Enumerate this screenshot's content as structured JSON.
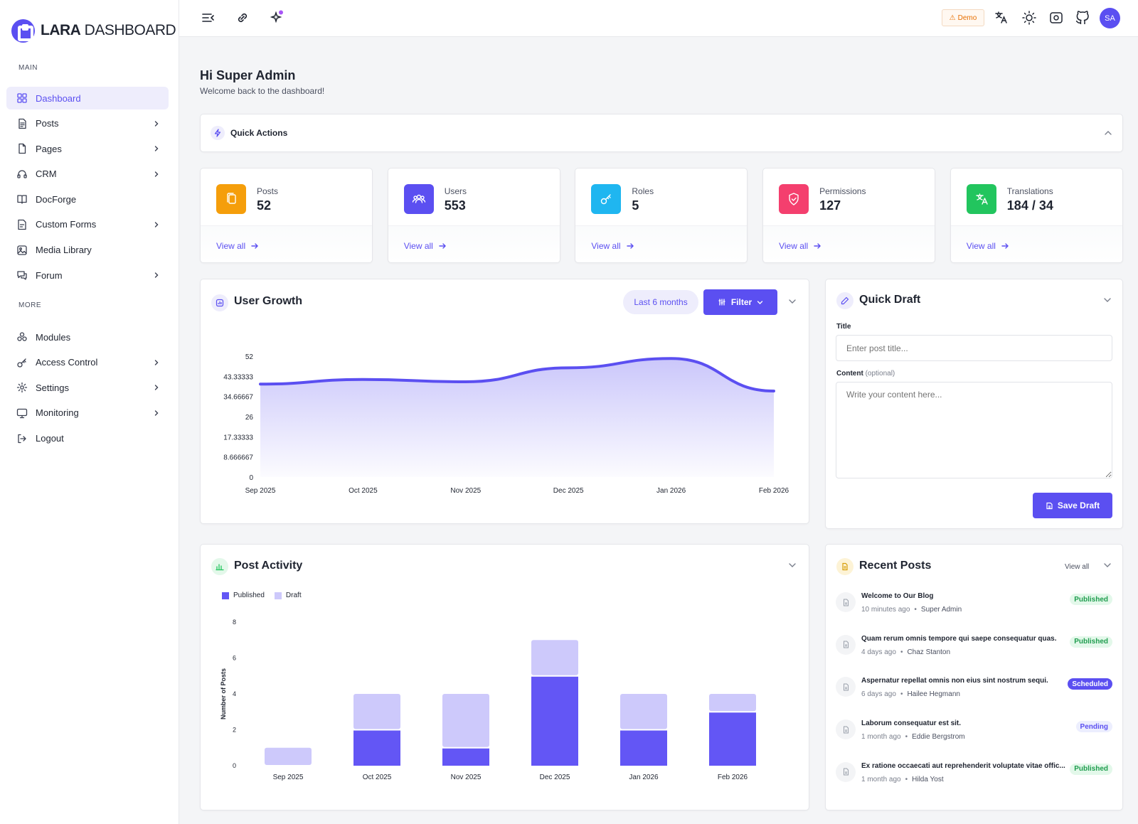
{
  "brand": {
    "bold": "LARA",
    "light": " DASHBOARD",
    "color": "#5b4ff1"
  },
  "sidebar": {
    "main_label": "MAIN",
    "more_label": "MORE",
    "main_items": [
      {
        "label": "Dashboard",
        "icon": "grid-icon",
        "active": true,
        "chevron": false
      },
      {
        "label": "Posts",
        "icon": "document-icon",
        "chevron": true
      },
      {
        "label": "Pages",
        "icon": "file-icon",
        "chevron": true
      },
      {
        "label": "CRM",
        "icon": "headset-icon",
        "chevron": true
      },
      {
        "label": "DocForge",
        "icon": "book-icon",
        "chevron": false
      },
      {
        "label": "Custom Forms",
        "icon": "form-icon",
        "chevron": true
      },
      {
        "label": "Media Library",
        "icon": "image-icon",
        "chevron": false
      },
      {
        "label": "Forum",
        "icon": "chat-icon",
        "chevron": true
      }
    ],
    "more_items": [
      {
        "label": "Modules",
        "icon": "modules-icon",
        "chevron": false
      },
      {
        "label": "Access Control",
        "icon": "key-icon",
        "chevron": true
      },
      {
        "label": "Settings",
        "icon": "gear-icon",
        "chevron": true
      },
      {
        "label": "Monitoring",
        "icon": "monitor-icon",
        "chevron": true
      },
      {
        "label": "Logout",
        "icon": "logout-icon",
        "chevron": false
      }
    ]
  },
  "topbar": {
    "demo_label": "Demo",
    "avatar_initials": "SA"
  },
  "greeting": {
    "title": "Hi Super Admin",
    "subtitle": "Welcome back to the dashboard!"
  },
  "quick_actions": {
    "title": "Quick Actions"
  },
  "stats": [
    {
      "label": "Posts",
      "value": "52",
      "link": "View all",
      "color": "#f59e0b",
      "icon": "copy-icon"
    },
    {
      "label": "Users",
      "value": "553",
      "link": "View all",
      "color": "#5b4ff1",
      "icon": "users-icon"
    },
    {
      "label": "Roles",
      "value": "5",
      "link": "View all",
      "color": "#1fb6f0",
      "icon": "key-icon"
    },
    {
      "label": "Permissions",
      "value": "127",
      "link": "View all",
      "color": "#f43f6e",
      "icon": "shield-icon"
    },
    {
      "label": "Translations",
      "value": "184 / 34",
      "link": "View all",
      "color": "#22c55e",
      "icon": "translate-icon"
    }
  ],
  "user_growth": {
    "title": "User Growth",
    "range_label": "Last 6 months",
    "filter_label": "Filter",
    "chart_data": {
      "type": "area",
      "x": [
        "Sep 2025",
        "Oct 2025",
        "Nov 2025",
        "Dec 2025",
        "Jan 2026",
        "Feb 2026"
      ],
      "series": [
        {
          "values": [
            40,
            42,
            41,
            47,
            51,
            37
          ]
        }
      ],
      "ylim": [
        0,
        52
      ],
      "yticks": [
        "52",
        "43.33333",
        "34.66667",
        "26",
        "17.33333",
        "8.666667",
        "0"
      ],
      "color": "#5b4ff1"
    }
  },
  "quick_draft": {
    "title": "Quick Draft",
    "title_label": "Title",
    "title_placeholder": "Enter post title...",
    "content_label": "Content",
    "content_hint": "(optional)",
    "content_placeholder": "Write your content here...",
    "save_label": "Save Draft"
  },
  "post_activity": {
    "title": "Post Activity",
    "chart_data": {
      "type": "bar",
      "stacked": true,
      "categories": [
        "Sep 2025",
        "Oct 2025",
        "Nov 2025",
        "Dec 2025",
        "Jan 2026",
        "Feb 2026"
      ],
      "series": [
        {
          "name": "Published",
          "values": [
            0,
            2,
            1,
            5,
            2,
            3
          ],
          "color": "#6356f5"
        },
        {
          "name": "Draft",
          "values": [
            1,
            2,
            3,
            2,
            2,
            1
          ],
          "color": "#cdc9fb"
        }
      ],
      "ylabel": "Number of Posts",
      "ylim": [
        0,
        8
      ],
      "yticks": [
        "0",
        "2",
        "4",
        "6",
        "8"
      ]
    }
  },
  "recent_posts": {
    "title": "Recent Posts",
    "view_all": "View all",
    "items": [
      {
        "title": "Welcome to Our Blog",
        "time": "10 minutes ago",
        "author": "Super Admin",
        "status": "Published",
        "status_class": "st-published"
      },
      {
        "title": "Quam rerum omnis tempore qui saepe consequatur quas.",
        "time": "4 days ago",
        "author": "Chaz Stanton",
        "status": "Published",
        "status_class": "st-published"
      },
      {
        "title": "Aspernatur repellat omnis non eius sint nostrum sequi.",
        "time": "6 days ago",
        "author": "Hailee Hegmann",
        "status": "Scheduled",
        "status_class": "st-scheduled"
      },
      {
        "title": "Laborum consequatur est sit.",
        "time": "1 month ago",
        "author": "Eddie Bergstrom",
        "status": "Pending",
        "status_class": "st-pending"
      },
      {
        "title": "Ex ratione occaecati aut reprehenderit voluptate vitae offic...",
        "time": "1 month ago",
        "author": "Hilda Yost",
        "status": "Published",
        "status_class": "st-published"
      }
    ]
  }
}
